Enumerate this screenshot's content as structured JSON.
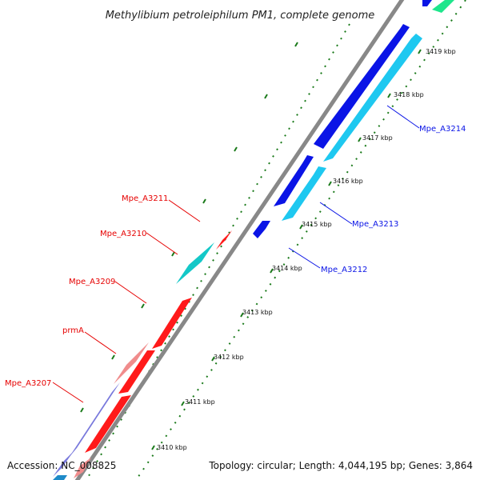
{
  "title": "Methylibium petroleiphilum PM1, complete genome",
  "footer": {
    "accession": "Accession: NC_008825",
    "topology": "Topology: circular; Length: 4,044,195 bp; Genes: 3,864"
  },
  "colors": {
    "backbone": "#888888",
    "ticks": "#1a7a1a",
    "red": "#ff1a1a",
    "blue": "#0a14e6",
    "light_blue": "#1ec8f0",
    "teal": "#14c8c8",
    "pink": "#f08c8c",
    "purple": "#7878dc",
    "green": "#1ee68c"
  },
  "kbp_labels": [
    "3410 kbp",
    "3411 kbp",
    "3412 kbp",
    "3413 kbp",
    "3414 kbp",
    "3415 kbp",
    "3416 kbp",
    "3417 kbp",
    "3418 kbp",
    "3419 kbp"
  ],
  "gene_labels": {
    "left": [
      "Mpe_A3211",
      "Mpe_A3210",
      "Mpe_A3209",
      "prmA",
      "Mpe_A3207"
    ],
    "right": [
      "Mpe_A3212",
      "Mpe_A3213",
      "Mpe_A3214"
    ]
  }
}
